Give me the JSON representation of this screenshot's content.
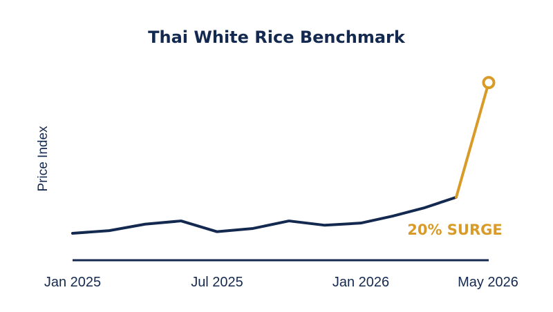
{
  "chart_data": {
    "type": "line",
    "title": "Thai White Rice Benchmark",
    "xlabel": "",
    "ylabel": "Price Index",
    "x_tick_labels": [
      "Jan 2025",
      "Jul 2025",
      "Jan 2026",
      "May 2026"
    ],
    "series": [
      {
        "values": [
          {
            "x": "2025-01",
            "y": 100
          },
          {
            "x": "2025-02",
            "y": 100.5
          },
          {
            "x": "2025-03",
            "y": 101.7
          },
          {
            "x": "2025-04",
            "y": 102.3
          },
          {
            "x": "2025-05",
            "y": 100.3
          },
          {
            "x": "2025-06",
            "y": 100.9
          },
          {
            "x": "2025-07",
            "y": 102.3
          },
          {
            "x": "2025-08",
            "y": 101.5
          },
          {
            "x": "2025-09",
            "y": 101.9
          },
          {
            "x": "2025-10",
            "y": 103.2
          },
          {
            "x": "2025-11",
            "y": 104.7
          },
          {
            "x": "2025-12",
            "y": 106.7
          }
        ],
        "color": "#14294f"
      },
      {
        "values": [
          {
            "x": "2025-12",
            "y": 106.7
          },
          {
            "x": "2026-05",
            "y": 128
          }
        ],
        "color": "#d99b28",
        "end_marker": "hollow-circle"
      }
    ],
    "annotations": [
      {
        "text": "20% SURGE",
        "color": "#d99b28"
      }
    ],
    "grid": false,
    "legend": "none",
    "y_axis_visible": false
  }
}
